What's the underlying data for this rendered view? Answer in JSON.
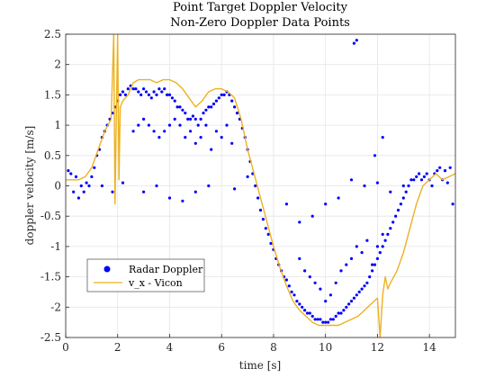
{
  "chart_data": {
    "type": "scatter",
    "title": "Point Target Doppler Velocity",
    "subtitle": "Non-Zero Doppler Data Points",
    "xlabel": "time [s]",
    "ylabel": "doppler velocity [m/s]",
    "xlim": [
      0,
      15
    ],
    "ylim": [
      -2.5,
      2.5
    ],
    "xticks": [
      "0",
      "2",
      "4",
      "6",
      "8",
      "10",
      "12",
      "14"
    ],
    "yticks": [
      "-2.5",
      "-2",
      "-1.5",
      "-1",
      "-0.5",
      "0",
      "0.5",
      "1",
      "1.5",
      "2",
      "2.5"
    ],
    "grid": true,
    "legend_position": "bottom-left",
    "series": [
      {
        "name": "Radar Doppler",
        "type": "scatter",
        "color": "#0000ff",
        "x": [
          0.1,
          0.2,
          0.3,
          0.4,
          0.5,
          0.6,
          0.7,
          0.8,
          0.9,
          1.0,
          1.1,
          1.2,
          1.3,
          1.4,
          1.5,
          1.6,
          1.7,
          1.8,
          1.9,
          2.0,
          2.1,
          2.2,
          2.3,
          2.4,
          2.5,
          2.6,
          2.7,
          2.8,
          2.9,
          3.0,
          3.1,
          3.2,
          3.3,
          3.4,
          3.5,
          3.6,
          3.7,
          3.8,
          3.9,
          4.0,
          4.1,
          4.2,
          4.3,
          4.4,
          4.5,
          4.6,
          4.7,
          4.8,
          4.9,
          5.0,
          5.1,
          5.2,
          5.3,
          5.4,
          5.5,
          5.6,
          5.7,
          5.8,
          5.9,
          6.0,
          6.1,
          6.2,
          6.3,
          6.4,
          6.5,
          6.6,
          6.7,
          6.8,
          6.9,
          7.0,
          7.1,
          7.2,
          7.3,
          7.4,
          7.5,
          7.6,
          7.7,
          7.8,
          7.9,
          8.0,
          8.1,
          8.2,
          8.3,
          8.4,
          8.5,
          8.6,
          8.7,
          8.8,
          8.9,
          9.0,
          9.1,
          9.2,
          9.3,
          9.4,
          9.5,
          9.6,
          9.7,
          9.8,
          9.9,
          10.0,
          10.1,
          10.2,
          10.3,
          10.4,
          10.5,
          10.6,
          10.7,
          10.8,
          10.9,
          11.0,
          11.1,
          11.2,
          11.3,
          11.4,
          11.5,
          11.6,
          11.7,
          11.8,
          11.9,
          12.0,
          12.1,
          12.2,
          12.3,
          12.4,
          12.5,
          12.6,
          12.7,
          12.8,
          12.9,
          13.0,
          13.1,
          13.2,
          13.3,
          13.4,
          13.5,
          13.6,
          13.7,
          13.8,
          13.9,
          14.0,
          14.1,
          14.2,
          14.3,
          14.4,
          14.5,
          14.6,
          14.7,
          14.8,
          14.9,
          2.6,
          2.8,
          3.0,
          3.2,
          3.4,
          3.6,
          3.8,
          4.0,
          4.2,
          4.4,
          4.6,
          4.8,
          5.0,
          5.2,
          5.4,
          5.6,
          5.8,
          6.0,
          6.2,
          6.4,
          9.0,
          9.2,
          9.4,
          9.6,
          9.8,
          10.0,
          10.2,
          10.4,
          10.6,
          10.8,
          11.0,
          11.2,
          11.4,
          11.6,
          11.8,
          12.0,
          12.2,
          1.4,
          1.8,
          2.2,
          3.0,
          3.5,
          4.0,
          4.5,
          5.0,
          5.5,
          6.5,
          7.0,
          8.5,
          9.0,
          9.5,
          10.0,
          10.5,
          11.0,
          11.5,
          12.0,
          12.5,
          13.0,
          11.1,
          11.2,
          11.9,
          12.2
        ],
        "y": [
          0.25,
          0.2,
          -0.1,
          0.15,
          -0.2,
          0.0,
          -0.1,
          0.05,
          0.0,
          0.15,
          0.3,
          0.5,
          0.6,
          0.8,
          0.9,
          1.0,
          1.1,
          1.2,
          1.3,
          1.4,
          1.5,
          1.55,
          1.5,
          1.6,
          1.65,
          1.6,
          1.6,
          1.55,
          1.5,
          1.6,
          1.55,
          1.5,
          1.45,
          1.55,
          1.5,
          1.6,
          1.55,
          1.6,
          1.5,
          1.5,
          1.45,
          1.4,
          1.3,
          1.3,
          1.25,
          1.2,
          1.1,
          1.1,
          1.15,
          1.1,
          1.0,
          1.1,
          1.2,
          1.25,
          1.3,
          1.3,
          1.35,
          1.4,
          1.45,
          1.5,
          1.5,
          1.55,
          1.5,
          1.4,
          1.3,
          1.2,
          1.1,
          0.95,
          0.8,
          0.6,
          0.4,
          0.2,
          0.0,
          -0.2,
          -0.4,
          -0.55,
          -0.7,
          -0.8,
          -0.95,
          -1.05,
          -1.2,
          -1.3,
          -1.4,
          -1.5,
          -1.55,
          -1.65,
          -1.75,
          -1.8,
          -1.9,
          -1.95,
          -2.0,
          -2.05,
          -2.1,
          -2.1,
          -2.15,
          -2.2,
          -2.2,
          -2.2,
          -2.25,
          -2.25,
          -2.25,
          -2.2,
          -2.2,
          -2.15,
          -2.1,
          -2.1,
          -2.05,
          -2.0,
          -1.95,
          -1.9,
          -1.85,
          -1.8,
          -1.75,
          -1.7,
          -1.65,
          -1.6,
          -1.5,
          -1.4,
          -1.3,
          -1.2,
          -1.1,
          -1.0,
          -0.9,
          -0.8,
          -0.7,
          -0.6,
          -0.5,
          -0.4,
          -0.3,
          -0.2,
          -0.1,
          0.0,
          0.1,
          0.1,
          0.15,
          0.2,
          0.1,
          0.15,
          0.2,
          0.1,
          0.0,
          0.2,
          0.25,
          0.3,
          0.1,
          0.25,
          0.05,
          0.3,
          -0.3,
          0.9,
          1.0,
          1.1,
          1.0,
          0.9,
          0.8,
          0.9,
          1.0,
          1.1,
          1.0,
          0.8,
          0.9,
          0.7,
          0.8,
          1.0,
          0.6,
          0.9,
          0.8,
          1.0,
          0.7,
          -1.2,
          -1.4,
          -1.5,
          -1.6,
          -1.7,
          -1.9,
          -1.8,
          -1.6,
          -1.4,
          -1.3,
          -1.2,
          -1.0,
          -1.1,
          -0.9,
          -1.3,
          -1.0,
          -0.8,
          0.0,
          -0.1,
          0.05,
          -0.1,
          0.0,
          -0.2,
          -0.25,
          -0.1,
          0.0,
          -0.05,
          0.15,
          -0.3,
          -0.6,
          -0.5,
          -0.3,
          -0.2,
          0.1,
          0.0,
          0.05,
          -0.1,
          0.0,
          2.35,
          2.4,
          0.5,
          0.8
        ]
      },
      {
        "name": "v_x - Vicon",
        "type": "line",
        "color": "#edb120",
        "x": [
          0.0,
          0.25,
          0.5,
          0.75,
          1.0,
          1.25,
          1.5,
          1.75,
          1.85,
          1.9,
          1.95,
          2.0,
          2.05,
          2.1,
          2.2,
          2.4,
          2.5,
          2.6,
          2.8,
          3.0,
          3.25,
          3.5,
          3.75,
          4.0,
          4.25,
          4.5,
          4.75,
          5.0,
          5.25,
          5.5,
          5.75,
          6.0,
          6.25,
          6.5,
          6.75,
          7.0,
          7.25,
          7.5,
          7.75,
          8.0,
          8.25,
          8.5,
          8.75,
          9.0,
          9.25,
          9.5,
          9.75,
          10.0,
          10.25,
          10.5,
          10.75,
          11.0,
          11.25,
          11.5,
          11.75,
          12.0,
          12.1,
          12.2,
          12.3,
          12.4,
          12.5,
          12.75,
          13.0,
          13.25,
          13.5,
          13.75,
          14.0,
          14.25,
          14.5,
          14.75,
          15.0
        ],
        "y": [
          0.1,
          0.1,
          0.1,
          0.15,
          0.3,
          0.6,
          0.9,
          1.1,
          2.5,
          -0.3,
          1.2,
          2.5,
          0.1,
          1.3,
          1.4,
          1.5,
          1.6,
          1.7,
          1.75,
          1.75,
          1.75,
          1.7,
          1.75,
          1.75,
          1.7,
          1.6,
          1.45,
          1.3,
          1.4,
          1.55,
          1.6,
          1.6,
          1.55,
          1.45,
          1.1,
          0.6,
          0.2,
          -0.2,
          -0.6,
          -1.0,
          -1.35,
          -1.65,
          -1.9,
          -2.05,
          -2.15,
          -2.25,
          -2.3,
          -2.3,
          -2.3,
          -2.3,
          -2.25,
          -2.2,
          -2.15,
          -2.05,
          -1.95,
          -1.85,
          -2.5,
          -1.8,
          -1.5,
          -1.7,
          -1.6,
          -1.4,
          -1.1,
          -0.7,
          -0.3,
          0.0,
          0.1,
          0.2,
          0.1,
          0.15,
          0.2
        ]
      }
    ]
  }
}
